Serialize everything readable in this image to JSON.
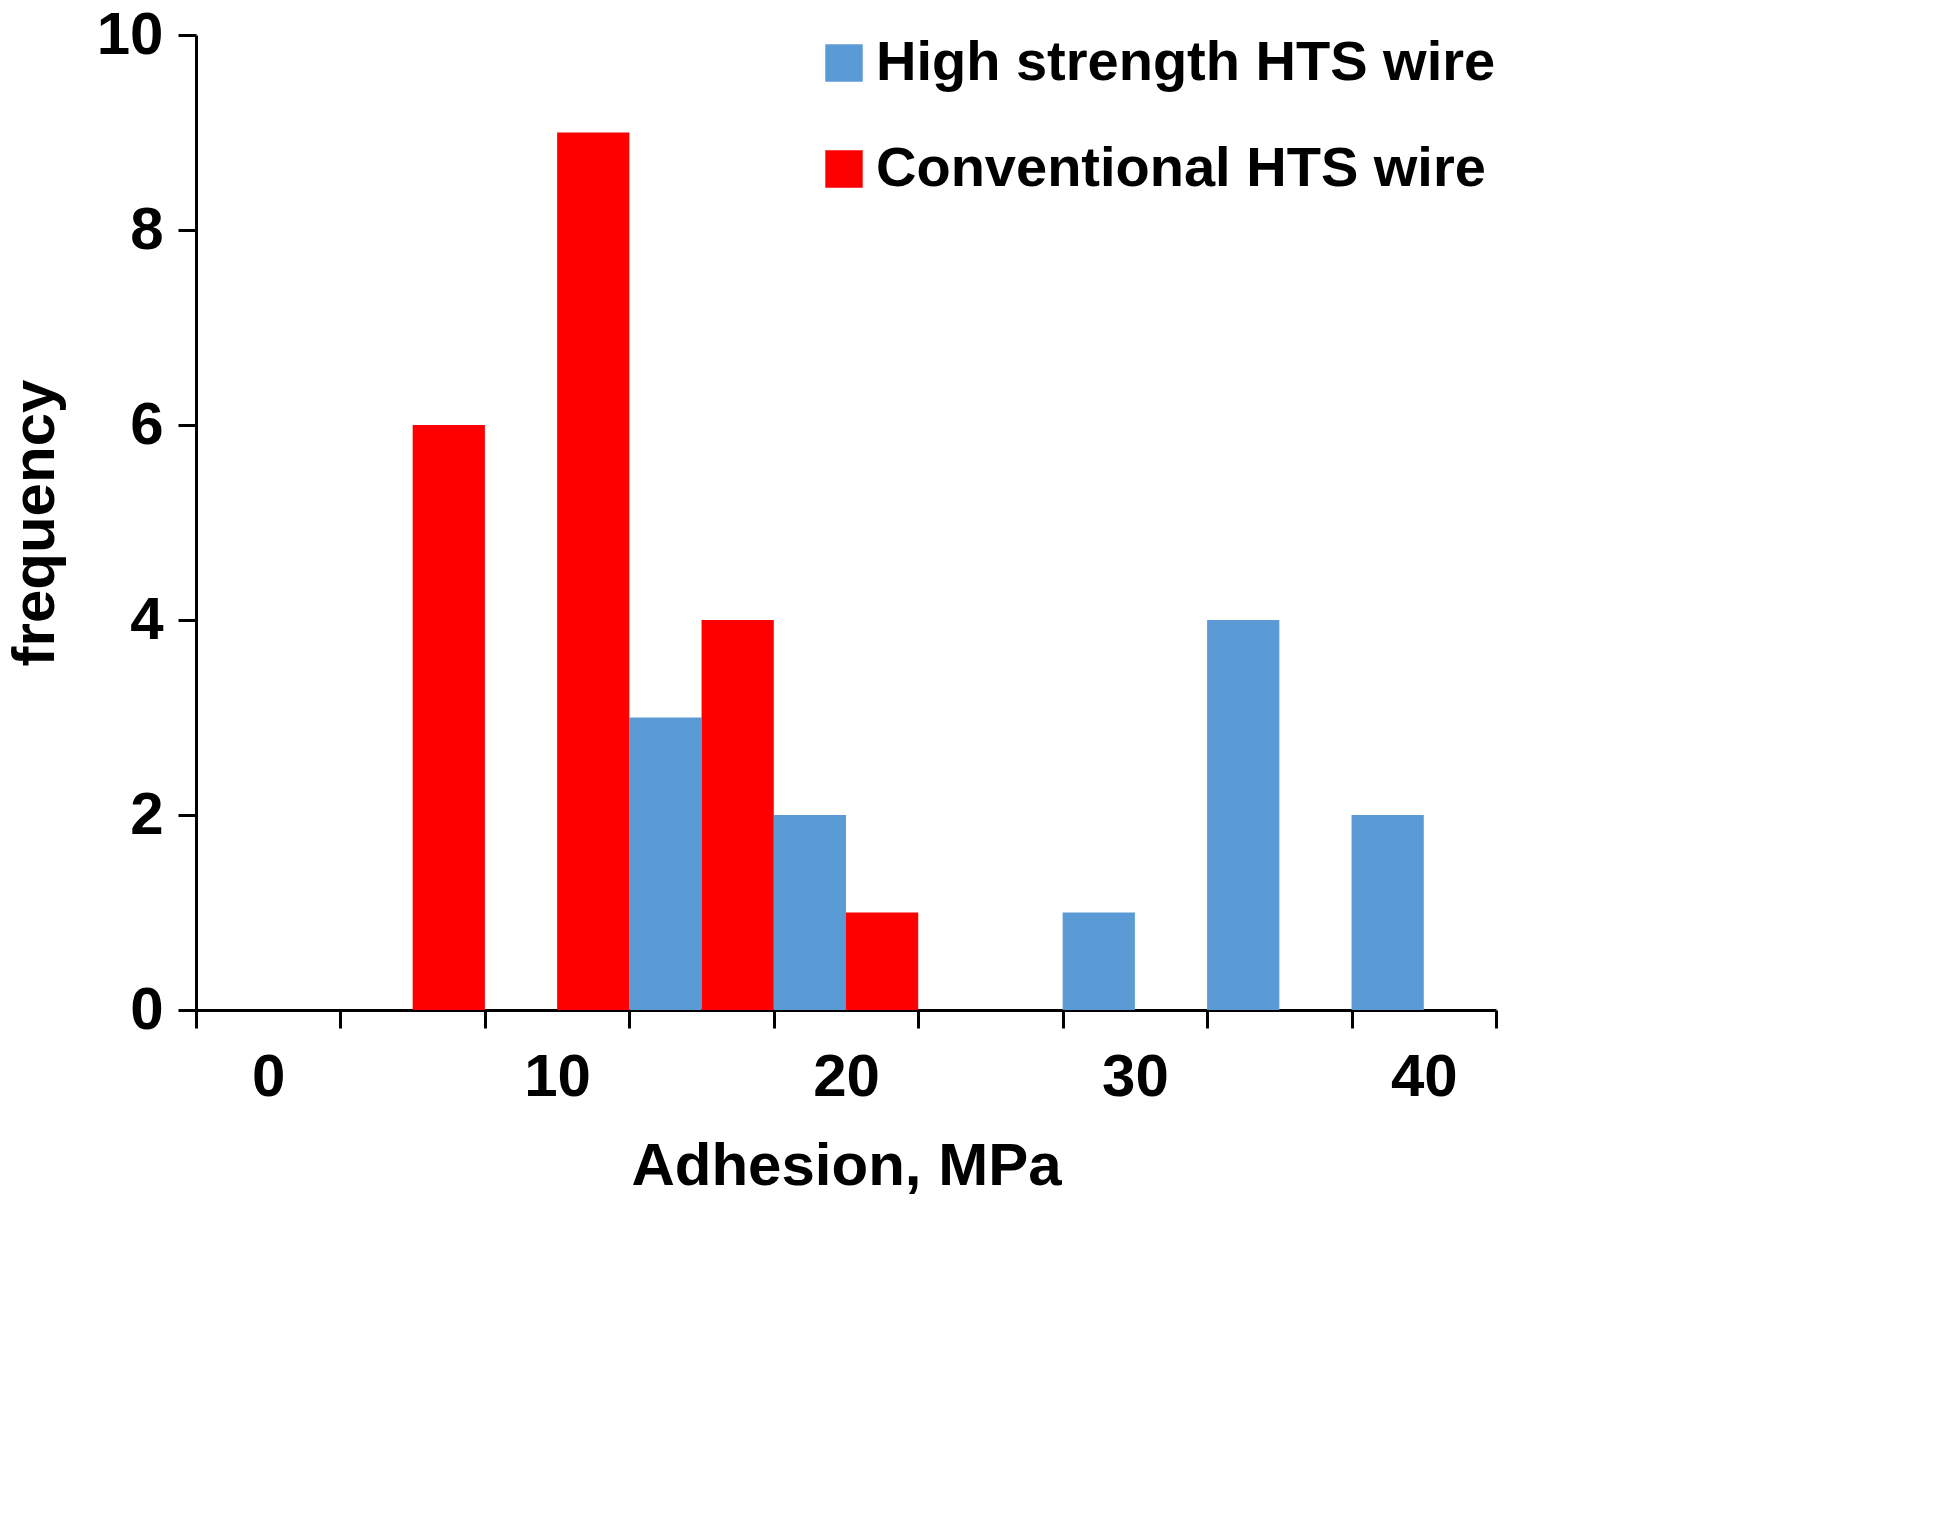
{
  "chart_data": {
    "type": "bar",
    "xlabel": "Adhesion, MPa",
    "ylabel": "frequency",
    "categories": [
      "0",
      null,
      "10",
      null,
      "20",
      null,
      "30",
      null,
      "40"
    ],
    "series": [
      {
        "name": "High strength HTS wire",
        "color": "#5b9bd5",
        "values": [
          0,
          0,
          0,
          3,
          2,
          0,
          1,
          4,
          2
        ]
      },
      {
        "name": "Conventional HTS wire",
        "color": "#ff0000",
        "values": [
          0,
          6,
          9,
          4,
          1,
          0,
          0,
          0,
          0
        ]
      }
    ],
    "ylim": [
      0,
      10
    ],
    "yticks": [
      0,
      2,
      4,
      6,
      8,
      10
    ],
    "grid": false,
    "legend": "top right"
  }
}
